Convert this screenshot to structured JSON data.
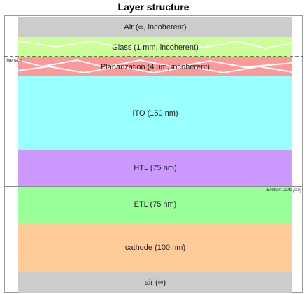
{
  "title": "Layer structure",
  "layers": [
    {
      "label": "Air (∞, incoherent)",
      "color": "#cccccc"
    },
    {
      "label": "Glass (1 mm, incoherent)",
      "color": "#ccff99"
    },
    {
      "label": "Planarization (4 um, incoherent)",
      "color": "#ff9999"
    },
    {
      "label": "ITO (150 nm)",
      "color": "#99ffff"
    },
    {
      "label": "HTL (75 nm)",
      "color": "#cc99ff"
    },
    {
      "label": "ETL (75 nm)",
      "color": "#99ff99"
    },
    {
      "label": "cathode (100 nm)",
      "color": "#ffcc99"
    },
    {
      "label": "air (∞)",
      "color": "#cccccc"
    }
  ],
  "annotations": {
    "interface": "Interface",
    "emitter": "Emitter: Delta [0.0]"
  }
}
